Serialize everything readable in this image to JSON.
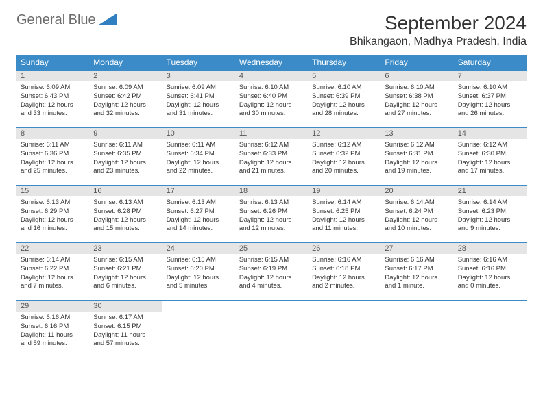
{
  "logo": {
    "text1": "General",
    "text2": "Blue"
  },
  "title": "September 2024",
  "location": "Bhikangaon, Madhya Pradesh, India",
  "weekdays": [
    "Sunday",
    "Monday",
    "Tuesday",
    "Wednesday",
    "Thursday",
    "Friday",
    "Saturday"
  ],
  "colors": {
    "header_bg": "#3b8bc8",
    "header_text": "#ffffff",
    "daynum_bg": "#e5e5e5",
    "border": "#3b8bc8",
    "logo_gray": "#6b6b6b",
    "logo_blue": "#2f7fc1"
  },
  "layout": {
    "columns": 7,
    "rows": 5,
    "start_weekday": 0
  },
  "days": [
    {
      "n": 1,
      "sunrise": "6:09 AM",
      "sunset": "6:43 PM",
      "daylight": "12 hours and 33 minutes."
    },
    {
      "n": 2,
      "sunrise": "6:09 AM",
      "sunset": "6:42 PM",
      "daylight": "12 hours and 32 minutes."
    },
    {
      "n": 3,
      "sunrise": "6:09 AM",
      "sunset": "6:41 PM",
      "daylight": "12 hours and 31 minutes."
    },
    {
      "n": 4,
      "sunrise": "6:10 AM",
      "sunset": "6:40 PM",
      "daylight": "12 hours and 30 minutes."
    },
    {
      "n": 5,
      "sunrise": "6:10 AM",
      "sunset": "6:39 PM",
      "daylight": "12 hours and 28 minutes."
    },
    {
      "n": 6,
      "sunrise": "6:10 AM",
      "sunset": "6:38 PM",
      "daylight": "12 hours and 27 minutes."
    },
    {
      "n": 7,
      "sunrise": "6:10 AM",
      "sunset": "6:37 PM",
      "daylight": "12 hours and 26 minutes."
    },
    {
      "n": 8,
      "sunrise": "6:11 AM",
      "sunset": "6:36 PM",
      "daylight": "12 hours and 25 minutes."
    },
    {
      "n": 9,
      "sunrise": "6:11 AM",
      "sunset": "6:35 PM",
      "daylight": "12 hours and 23 minutes."
    },
    {
      "n": 10,
      "sunrise": "6:11 AM",
      "sunset": "6:34 PM",
      "daylight": "12 hours and 22 minutes."
    },
    {
      "n": 11,
      "sunrise": "6:12 AM",
      "sunset": "6:33 PM",
      "daylight": "12 hours and 21 minutes."
    },
    {
      "n": 12,
      "sunrise": "6:12 AM",
      "sunset": "6:32 PM",
      "daylight": "12 hours and 20 minutes."
    },
    {
      "n": 13,
      "sunrise": "6:12 AM",
      "sunset": "6:31 PM",
      "daylight": "12 hours and 19 minutes."
    },
    {
      "n": 14,
      "sunrise": "6:12 AM",
      "sunset": "6:30 PM",
      "daylight": "12 hours and 17 minutes."
    },
    {
      "n": 15,
      "sunrise": "6:13 AM",
      "sunset": "6:29 PM",
      "daylight": "12 hours and 16 minutes."
    },
    {
      "n": 16,
      "sunrise": "6:13 AM",
      "sunset": "6:28 PM",
      "daylight": "12 hours and 15 minutes."
    },
    {
      "n": 17,
      "sunrise": "6:13 AM",
      "sunset": "6:27 PM",
      "daylight": "12 hours and 14 minutes."
    },
    {
      "n": 18,
      "sunrise": "6:13 AM",
      "sunset": "6:26 PM",
      "daylight": "12 hours and 12 minutes."
    },
    {
      "n": 19,
      "sunrise": "6:14 AM",
      "sunset": "6:25 PM",
      "daylight": "12 hours and 11 minutes."
    },
    {
      "n": 20,
      "sunrise": "6:14 AM",
      "sunset": "6:24 PM",
      "daylight": "12 hours and 10 minutes."
    },
    {
      "n": 21,
      "sunrise": "6:14 AM",
      "sunset": "6:23 PM",
      "daylight": "12 hours and 9 minutes."
    },
    {
      "n": 22,
      "sunrise": "6:14 AM",
      "sunset": "6:22 PM",
      "daylight": "12 hours and 7 minutes."
    },
    {
      "n": 23,
      "sunrise": "6:15 AM",
      "sunset": "6:21 PM",
      "daylight": "12 hours and 6 minutes."
    },
    {
      "n": 24,
      "sunrise": "6:15 AM",
      "sunset": "6:20 PM",
      "daylight": "12 hours and 5 minutes."
    },
    {
      "n": 25,
      "sunrise": "6:15 AM",
      "sunset": "6:19 PM",
      "daylight": "12 hours and 4 minutes."
    },
    {
      "n": 26,
      "sunrise": "6:16 AM",
      "sunset": "6:18 PM",
      "daylight": "12 hours and 2 minutes."
    },
    {
      "n": 27,
      "sunrise": "6:16 AM",
      "sunset": "6:17 PM",
      "daylight": "12 hours and 1 minute."
    },
    {
      "n": 28,
      "sunrise": "6:16 AM",
      "sunset": "6:16 PM",
      "daylight": "12 hours and 0 minutes."
    },
    {
      "n": 29,
      "sunrise": "6:16 AM",
      "sunset": "6:16 PM",
      "daylight": "11 hours and 59 minutes."
    },
    {
      "n": 30,
      "sunrise": "6:17 AM",
      "sunset": "6:15 PM",
      "daylight": "11 hours and 57 minutes."
    }
  ],
  "labels": {
    "sunrise": "Sunrise:",
    "sunset": "Sunset:",
    "daylight": "Daylight:"
  }
}
